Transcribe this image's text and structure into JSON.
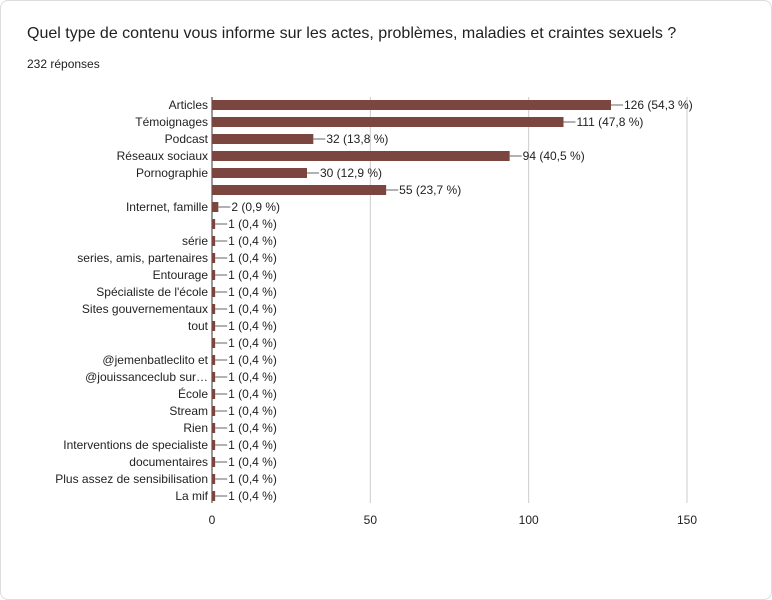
{
  "question": "Quel type de contenu vous informe sur les actes, problèmes, maladies et craintes sexuels ?",
  "response_count": "232 réponses",
  "chart_data": {
    "type": "bar",
    "orientation": "horizontal",
    "bar_color": "#7b4640",
    "grid": true,
    "xlim": [
      0,
      150
    ],
    "xticks": [
      0,
      50,
      100,
      150
    ],
    "categories": [
      "Articles",
      "Témoignages",
      "Podcast",
      "Réseaux sociaux",
      "Pornographie",
      "",
      "Internet, famille",
      "",
      "série",
      "series, amis, partenaires",
      "Entourage",
      "Spécialiste de l'école",
      "Sites gouvernementaux",
      "tout",
      "",
      "@jemenbatleclito et",
      "@jouissanceclub sur…",
      "École",
      "Stream",
      "Rien",
      "Interventions de specialiste",
      "documentaires",
      "Plus assez de sensibilisation",
      "La mif"
    ],
    "values": [
      126,
      111,
      32,
      94,
      30,
      55,
      2,
      1,
      1,
      1,
      1,
      1,
      1,
      1,
      1,
      1,
      1,
      1,
      1,
      1,
      1,
      1,
      1,
      1
    ],
    "data_labels": [
      "126 (54,3 %)",
      "111 (47,8 %)",
      "32 (13,8 %)",
      "94 (40,5 %)",
      "30 (12,9 %)",
      "55 (23,7 %)",
      "2 (0,9 %)",
      "1 (0,4 %)",
      "1 (0,4 %)",
      "1 (0,4 %)",
      "1 (0,4 %)",
      "1 (0,4 %)",
      "1 (0,4 %)",
      "1 (0,4 %)",
      "1 (0,4 %)",
      "1 (0,4 %)",
      "1 (0,4 %)",
      "1 (0,4 %)",
      "1 (0,4 %)",
      "1 (0,4 %)",
      "1 (0,4 %)",
      "1 (0,4 %)",
      "1 (0,4 %)",
      "1 (0,4 %)"
    ]
  }
}
